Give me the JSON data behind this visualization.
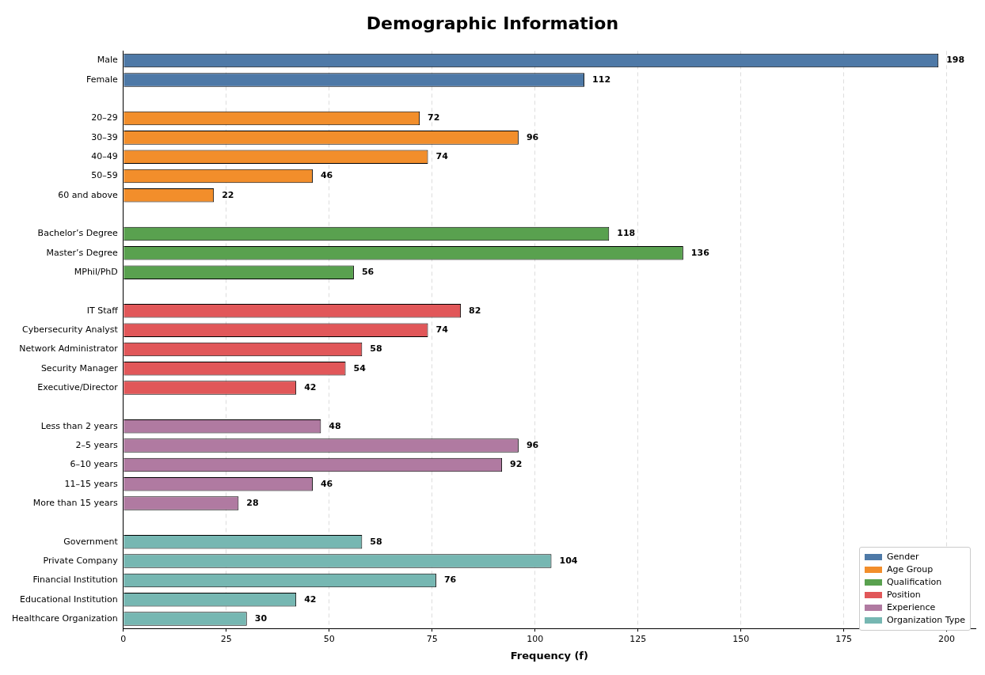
{
  "chart_data": {
    "type": "bar",
    "orientation": "horizontal",
    "title": "Demographic Information",
    "xlabel": "Frequency (f)",
    "categories": [
      "Male",
      "Female",
      null,
      "20–29",
      "30–39",
      "40–49",
      "50–59",
      "60 and above",
      null,
      "Bachelor’s Degree",
      "Master’s Degree",
      "MPhil/PhD",
      null,
      "IT Staff",
      "Cybersecurity Analyst",
      "Network Administrator",
      "Security Manager",
      "Executive/Director",
      null,
      "Less than 2 years",
      "2–5 years",
      "6–10 years",
      "11–15 years",
      "More than 15 years",
      null,
      "Government",
      "Private Company",
      "Financial Institution",
      "Educational Institution",
      "Healthcare Organization"
    ],
    "series": [
      {
        "name": "Gender",
        "color": "#4e79a7",
        "values": [
          198,
          112,
          null,
          null,
          null,
          null,
          null,
          null,
          null,
          null,
          null,
          null,
          null,
          null,
          null,
          null,
          null,
          null,
          null,
          null,
          null,
          null,
          null,
          null,
          null,
          null,
          null,
          null,
          null,
          null
        ]
      },
      {
        "name": "Age Group",
        "color": "#f28e2b",
        "values": [
          null,
          null,
          null,
          72,
          96,
          74,
          46,
          22,
          null,
          null,
          null,
          null,
          null,
          null,
          null,
          null,
          null,
          null,
          null,
          null,
          null,
          null,
          null,
          null,
          null,
          null,
          null,
          null,
          null,
          null
        ]
      },
      {
        "name": "Qualification",
        "color": "#59a14f",
        "values": [
          null,
          null,
          null,
          null,
          null,
          null,
          null,
          null,
          null,
          118,
          136,
          56,
          null,
          null,
          null,
          null,
          null,
          null,
          null,
          null,
          null,
          null,
          null,
          null,
          null,
          null,
          null,
          null,
          null,
          null
        ]
      },
      {
        "name": "Position",
        "color": "#e15759",
        "values": [
          null,
          null,
          null,
          null,
          null,
          null,
          null,
          null,
          null,
          null,
          null,
          null,
          null,
          82,
          74,
          58,
          54,
          42,
          null,
          null,
          null,
          null,
          null,
          null,
          null,
          null,
          null,
          null,
          null,
          null
        ]
      },
      {
        "name": "Experience",
        "color": "#b07aa1",
        "values": [
          null,
          null,
          null,
          null,
          null,
          null,
          null,
          null,
          null,
          null,
          null,
          null,
          null,
          null,
          null,
          null,
          null,
          null,
          null,
          48,
          96,
          92,
          46,
          28,
          null,
          null,
          null,
          null,
          null,
          null
        ]
      },
      {
        "name": "Organization Type",
        "color": "#76b7b2",
        "values": [
          null,
          null,
          null,
          null,
          null,
          null,
          null,
          null,
          null,
          null,
          null,
          null,
          null,
          null,
          null,
          null,
          null,
          null,
          null,
          null,
          null,
          null,
          null,
          null,
          null,
          58,
          104,
          76,
          42,
          30
        ]
      }
    ],
    "xlim": [
      0,
      207
    ],
    "xticks": [
      0,
      25,
      50,
      75,
      100,
      125,
      150,
      175,
      200
    ],
    "grid": "x",
    "legend": "bottom right",
    "data_labels": true
  }
}
